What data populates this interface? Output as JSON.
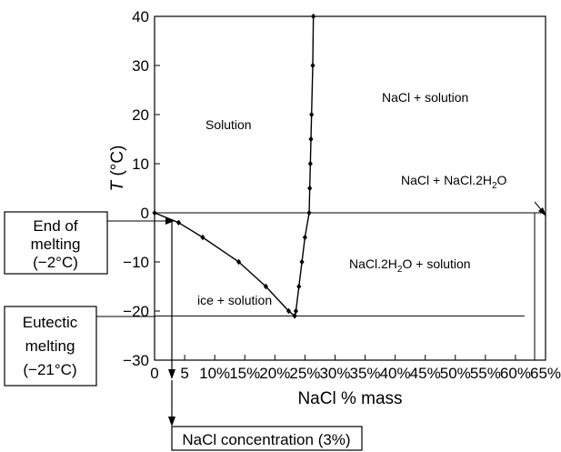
{
  "chart_data": {
    "type": "line",
    "title": "",
    "xlabel": "NaCl % mass",
    "ylabel_italic": "T",
    "ylabel_rest": " (°C)",
    "xlim": [
      0,
      65
    ],
    "ylim": [
      -30,
      40
    ],
    "xticks": [
      "0",
      "5",
      "10%",
      "15%",
      "20%",
      "25%",
      "30%",
      "35%",
      "40%",
      "45%",
      "50%",
      "55%",
      "60%",
      "65%"
    ],
    "xtick_values": [
      0,
      5,
      10,
      15,
      20,
      25,
      30,
      35,
      40,
      45,
      50,
      55,
      60,
      65
    ],
    "yticks": [
      "40",
      "30",
      "20",
      "10",
      "0",
      "−10",
      "−20",
      "−30"
    ],
    "ytick_values": [
      40,
      30,
      20,
      10,
      0,
      -10,
      -20,
      -30
    ],
    "grid": false,
    "series": [
      {
        "points": [
          [
            0,
            0
          ],
          [
            4,
            -2
          ],
          [
            8,
            -5
          ],
          [
            14,
            -10
          ],
          [
            18.5,
            -15
          ],
          [
            22.3,
            -20
          ],
          [
            23.3,
            -21
          ],
          [
            23.5,
            -20
          ],
          [
            24,
            -15
          ],
          [
            24.5,
            -10
          ],
          [
            25,
            -5
          ],
          [
            25.7,
            0
          ],
          [
            25.8,
            5
          ],
          [
            25.9,
            10
          ],
          [
            26,
            15
          ],
          [
            26.1,
            20
          ],
          [
            26.3,
            30
          ],
          [
            26.4,
            40
          ]
        ]
      }
    ],
    "horizontal_lines": [
      0,
      -21
    ],
    "eutectic_x_end": 61.5,
    "region_labels": {
      "solution": "Solution",
      "nacl_solution": "NaCl + solution",
      "nacl_nacl2h2o_prefix": "NaCl + NaCl.2H",
      "nacl_nacl2h2o_sub": "2",
      "nacl_nacl2h2o_suffix": "O",
      "nacl2h2o_solution_prefix": "NaCl.2H",
      "nacl2h2o_solution_sub": "2",
      "nacl2h2o_solution_suffix": "O + solution",
      "ice_solution": "ice + solution"
    },
    "annotations": {
      "end_of_melting": [
        "End of",
        "melting",
        "(−2°C)"
      ],
      "eutectic_melting": [
        "Eutectic",
        "melting",
        "(−21°C)"
      ],
      "nacl_concentration": "NaCl concentration (3%)"
    }
  }
}
